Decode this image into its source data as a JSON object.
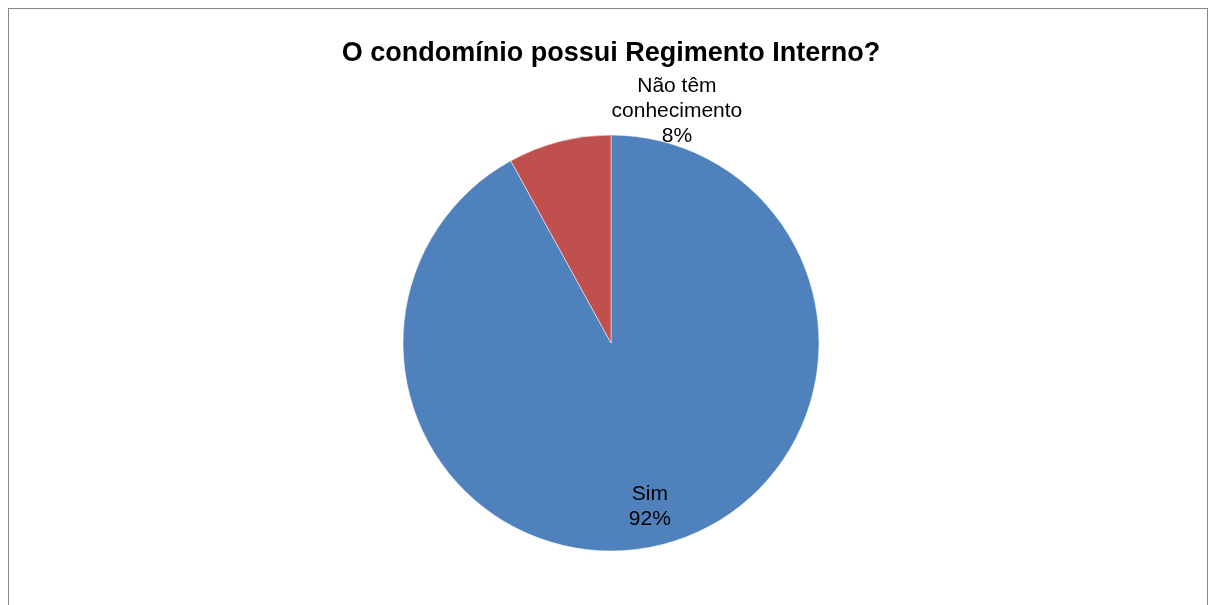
{
  "chart_data": {
    "type": "pie",
    "title": "O condomínio possui Regimento Interno?",
    "categories": [
      "Sim",
      "Não têm conhecimento"
    ],
    "values": [
      92,
      8
    ],
    "value_labels": [
      "92%",
      "8%"
    ],
    "colors": [
      "#4f81bd",
      "#c0504d"
    ],
    "data_labels": true,
    "legend": false
  }
}
